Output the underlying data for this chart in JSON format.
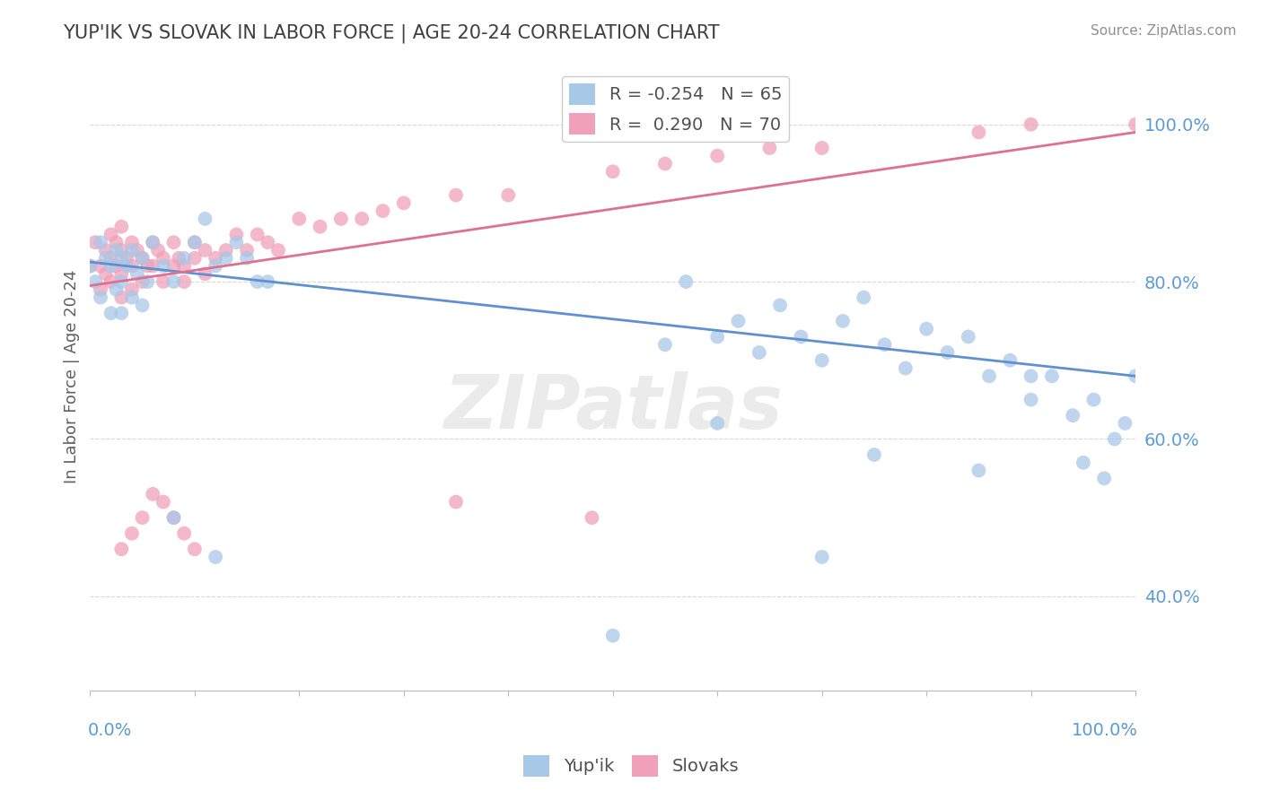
{
  "title": "YUP'IK VS SLOVAK IN LABOR FORCE | AGE 20-24 CORRELATION CHART",
  "source_text": "Source: ZipAtlas.com",
  "ylabel": "In Labor Force | Age 20-24",
  "legend_label1": "Yup'ik",
  "legend_label2": "Slovaks",
  "yticks": [
    0.4,
    0.6,
    0.8,
    1.0
  ],
  "ytick_labels": [
    "40.0%",
    "60.0%",
    "80.0%",
    "100.0%"
  ],
  "grid_yticks": [
    0.4,
    0.6,
    0.8,
    1.0
  ],
  "xlim": [
    0.0,
    1.0
  ],
  "ylim": [
    0.28,
    1.08
  ],
  "color_blue": "#A8C8E8",
  "color_pink": "#F0A0B8",
  "color_blue_line": "#6090D0",
  "color_pink_line": "#E07090",
  "color_title": "#404040",
  "color_source": "#909090",
  "color_ytick": "#5B9BD5",
  "color_xtick": "#5B9BD5",
  "color_grid": "#D8D8D8",
  "R_blue": -0.254,
  "N_blue": 65,
  "R_pink": 0.29,
  "N_pink": 70,
  "blue_intercept": 0.825,
  "blue_slope": -0.145,
  "pink_intercept": 0.795,
  "pink_slope": 0.195,
  "blue_x": [
    0.0,
    0.005,
    0.01,
    0.01,
    0.015,
    0.02,
    0.02,
    0.025,
    0.025,
    0.03,
    0.03,
    0.03,
    0.035,
    0.04,
    0.04,
    0.045,
    0.05,
    0.05,
    0.055,
    0.06,
    0.07,
    0.08,
    0.09,
    0.1,
    0.11,
    0.12,
    0.14,
    0.15,
    0.17,
    0.08,
    0.12,
    0.55,
    0.57,
    0.6,
    0.62,
    0.64,
    0.66,
    0.68,
    0.7,
    0.72,
    0.74,
    0.76,
    0.78,
    0.8,
    0.82,
    0.84,
    0.86,
    0.88,
    0.9,
    0.92,
    0.94,
    0.96,
    0.98,
    1.0,
    0.95,
    0.97,
    0.99,
    0.5,
    0.7,
    0.85,
    0.6,
    0.75,
    0.9,
    0.13,
    0.16
  ],
  "blue_y": [
    0.82,
    0.8,
    0.85,
    0.78,
    0.83,
    0.82,
    0.76,
    0.84,
    0.79,
    0.83,
    0.8,
    0.76,
    0.82,
    0.84,
    0.78,
    0.81,
    0.83,
    0.77,
    0.8,
    0.85,
    0.82,
    0.8,
    0.83,
    0.85,
    0.88,
    0.82,
    0.85,
    0.83,
    0.8,
    0.5,
    0.45,
    0.72,
    0.8,
    0.73,
    0.75,
    0.71,
    0.77,
    0.73,
    0.7,
    0.75,
    0.78,
    0.72,
    0.69,
    0.74,
    0.71,
    0.73,
    0.68,
    0.7,
    0.65,
    0.68,
    0.63,
    0.65,
    0.6,
    0.68,
    0.57,
    0.55,
    0.62,
    0.35,
    0.45,
    0.56,
    0.62,
    0.58,
    0.68,
    0.83,
    0.8
  ],
  "pink_x": [
    0.0,
    0.005,
    0.01,
    0.01,
    0.015,
    0.015,
    0.02,
    0.02,
    0.02,
    0.025,
    0.025,
    0.03,
    0.03,
    0.03,
    0.03,
    0.035,
    0.04,
    0.04,
    0.04,
    0.045,
    0.05,
    0.05,
    0.055,
    0.06,
    0.06,
    0.065,
    0.07,
    0.07,
    0.08,
    0.08,
    0.085,
    0.09,
    0.09,
    0.1,
    0.1,
    0.11,
    0.11,
    0.12,
    0.13,
    0.14,
    0.15,
    0.16,
    0.17,
    0.18,
    0.2,
    0.22,
    0.24,
    0.26,
    0.28,
    0.3,
    0.35,
    0.4,
    0.5,
    0.55,
    0.6,
    0.65,
    0.7,
    0.85,
    0.9,
    1.0,
    0.03,
    0.04,
    0.05,
    0.06,
    0.07,
    0.08,
    0.09,
    0.1,
    0.35,
    0.48
  ],
  "pink_y": [
    0.82,
    0.85,
    0.82,
    0.79,
    0.84,
    0.81,
    0.86,
    0.83,
    0.8,
    0.85,
    0.82,
    0.87,
    0.84,
    0.81,
    0.78,
    0.83,
    0.85,
    0.82,
    0.79,
    0.84,
    0.83,
    0.8,
    0.82,
    0.85,
    0.82,
    0.84,
    0.83,
    0.8,
    0.85,
    0.82,
    0.83,
    0.82,
    0.8,
    0.85,
    0.83,
    0.84,
    0.81,
    0.83,
    0.84,
    0.86,
    0.84,
    0.86,
    0.85,
    0.84,
    0.88,
    0.87,
    0.88,
    0.88,
    0.89,
    0.9,
    0.91,
    0.91,
    0.94,
    0.95,
    0.96,
    0.97,
    0.97,
    0.99,
    1.0,
    1.0,
    0.46,
    0.48,
    0.5,
    0.53,
    0.52,
    0.5,
    0.48,
    0.46,
    0.52,
    0.5
  ]
}
